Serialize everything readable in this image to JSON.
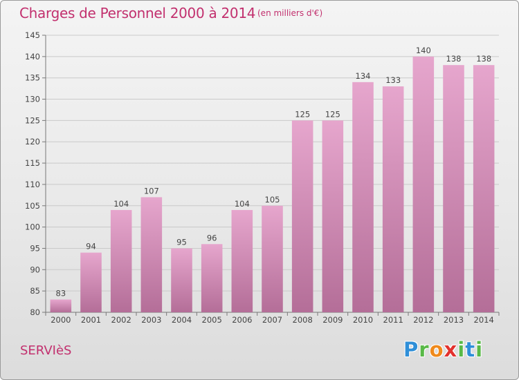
{
  "chart_data": {
    "type": "bar",
    "title": "Charges de Personnel 2000 à 2014",
    "subtitle": "(en milliers d'€)",
    "categories": [
      "2000",
      "2001",
      "2002",
      "2003",
      "2004",
      "2005",
      "2006",
      "2007",
      "2008",
      "2009",
      "2010",
      "2011",
      "2012",
      "2013",
      "2014"
    ],
    "values": [
      83,
      94,
      104,
      107,
      95,
      96,
      104,
      105,
      125,
      125,
      134,
      133,
      140,
      138,
      138
    ],
    "ylim": [
      80,
      145
    ],
    "yticks": [
      80,
      85,
      90,
      95,
      100,
      105,
      110,
      115,
      120,
      125,
      130,
      135,
      140,
      145
    ],
    "xlabel": "",
    "ylabel": "",
    "grid": true
  },
  "footer": {
    "commune": "SERVIèS",
    "logo_letters": [
      "P",
      "r",
      "o",
      "x",
      "i",
      "t",
      "i"
    ]
  },
  "colors": {
    "title": "#c2306e",
    "bar_top": "#e6a6cd",
    "bar_bottom": "#b46e98",
    "logo": [
      "#2f8fd8",
      "#58b947",
      "#f08a1c",
      "#e2322e",
      "#58b947",
      "#2f8fd8",
      "#58b947"
    ]
  }
}
